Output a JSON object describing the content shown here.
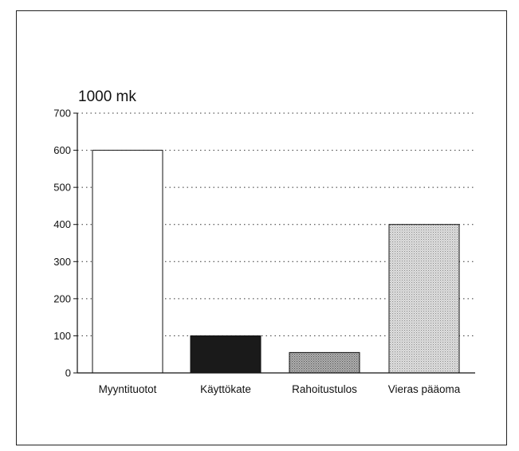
{
  "chart_data": {
    "type": "bar",
    "unit_label": "1000 mk",
    "categories": [
      "Myyntituotot",
      "Käyttökate",
      "Rahoitustulos",
      "Vieras pääoma"
    ],
    "values": [
      600,
      100,
      55,
      400
    ],
    "ylim": [
      0,
      700
    ],
    "yticks": [
      0,
      100,
      200,
      300,
      400,
      500,
      600,
      700
    ],
    "grid": true,
    "grid_style": "dotted",
    "bar_fills": [
      "#ffffff",
      "#1a1a1a",
      "#9a9a9a",
      "#cfcfcf"
    ],
    "bar_patterns": [
      "solid",
      "solid-dark",
      "dense-dots",
      "light-dots"
    ]
  }
}
